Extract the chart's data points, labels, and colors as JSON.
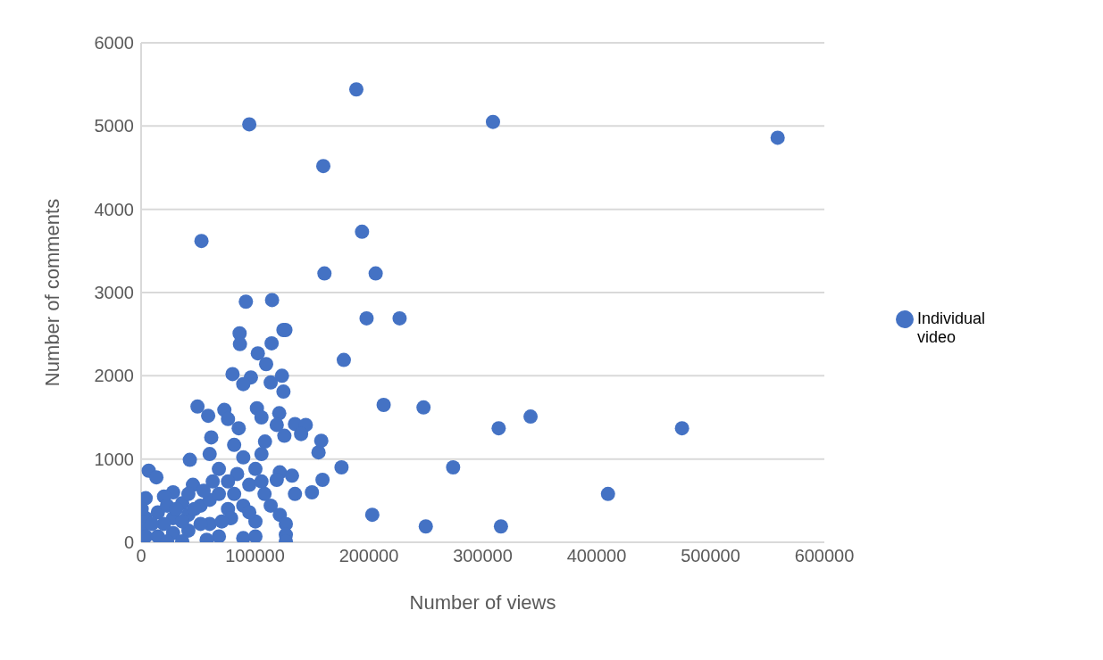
{
  "chart_data": {
    "type": "scatter",
    "xlabel": "Number  of views",
    "ylabel": "Number  of comments",
    "legend": "right",
    "grid": "y",
    "marker": "circle",
    "xlim": [
      0,
      600000
    ],
    "xticks": [
      0,
      100000,
      200000,
      300000,
      400000,
      500000,
      600000
    ],
    "ylim": [
      0,
      6000
    ],
    "yticks": [
      0,
      1000,
      2000,
      3000,
      4000,
      5000,
      6000
    ],
    "series": [
      {
        "name": "Individual video",
        "color": "#4472c4",
        "x": [
          189000,
          95000,
          309000,
          559000,
          160000,
          53000,
          194000,
          161000,
          206000,
          92000,
          115000,
          125000,
          198000,
          227000,
          178000,
          213000,
          248000,
          342000,
          314000,
          475000,
          274000,
          176000,
          410000,
          203000,
          250000,
          316000,
          86500,
          86800,
          126700,
          114600,
          102500,
          109800,
          80300,
          96400,
          123700,
          113800,
          125000,
          89700,
          49500,
          58900,
          73100,
          76300,
          101700,
          105700,
          121300,
          119100,
          135100,
          144600,
          140500,
          125800,
          85700,
          81700,
          108800,
          61600,
          105700,
          89700,
          155800,
          158200,
          42800,
          60200,
          6700,
          13400,
          121800,
          132500,
          119100,
          159300,
          150000,
          135100,
          108400,
          95000,
          84300,
          68300,
          76300,
          45500,
          28100,
          20100,
          4000,
          89700,
          113800,
          121800,
          127100,
          127100,
          127100,
          100400,
          89700,
          68300,
          100400,
          60200,
          76300,
          52200,
          60200,
          68300,
          36100,
          41500,
          28100,
          14700,
          4000,
          500,
          4000,
          14700,
          28100,
          41500,
          52200,
          20100,
          9400,
          36100,
          46800,
          22800,
          500,
          22800,
          36100,
          57600,
          79000,
          95000,
          70900,
          62900,
          54900,
          81700,
          105700,
          100400,
          41500,
          30800
        ],
        "values": [
          5440,
          5020,
          5050,
          4860,
          4520,
          3620,
          3730,
          3230,
          3230,
          2890,
          2910,
          2550,
          2690,
          2690,
          2190,
          1650,
          1620,
          1510,
          1370,
          1370,
          900,
          900,
          580,
          330,
          190,
          190,
          2510,
          2380,
          2550,
          2390,
          2270,
          2140,
          2020,
          1980,
          2000,
          1920,
          1810,
          1900,
          1630,
          1520,
          1590,
          1480,
          1610,
          1500,
          1550,
          1410,
          1420,
          1410,
          1300,
          1280,
          1370,
          1170,
          1210,
          1260,
          1060,
          1020,
          1080,
          1220,
          990,
          1060,
          860,
          780,
          840,
          800,
          750,
          750,
          600,
          580,
          580,
          690,
          820,
          880,
          730,
          690,
          600,
          550,
          530,
          440,
          440,
          330,
          220,
          90,
          10,
          250,
          50,
          70,
          70,
          220,
          400,
          440,
          510,
          580,
          470,
          330,
          290,
          360,
          290,
          140,
          70,
          70,
          110,
          140,
          220,
          220,
          220,
          250,
          400,
          440,
          400,
          10,
          10,
          30,
          290,
          360,
          250,
          730,
          620,
          580,
          730,
          880,
          580,
          400
        ]
      }
    ]
  }
}
